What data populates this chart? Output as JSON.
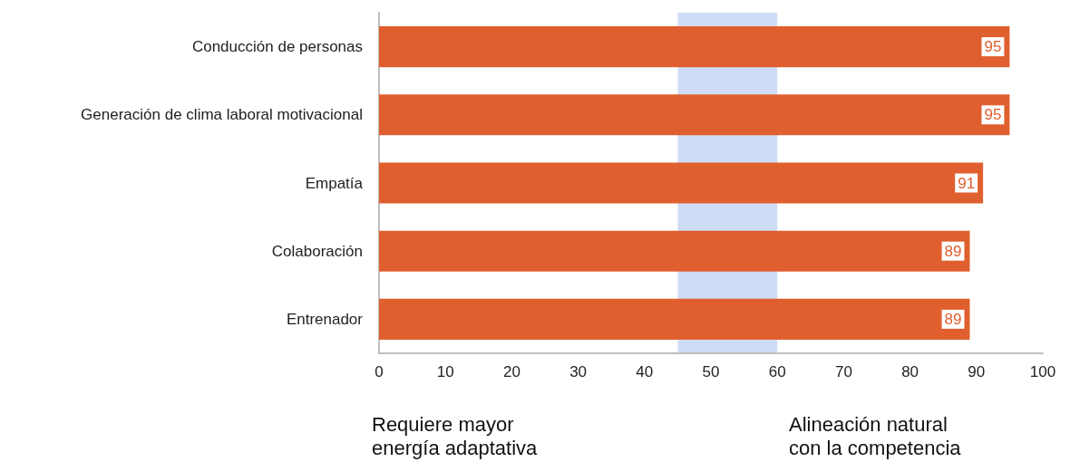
{
  "chart_data": {
    "type": "bar",
    "orientation": "horizontal",
    "categories": [
      "Conducción de personas",
      "Generación de clima laboral motivacional",
      "Empatía",
      "Colaboración",
      "Entrenador"
    ],
    "values": [
      95,
      95,
      91,
      89,
      89
    ],
    "color": "#e05f2f",
    "xlim": [
      0,
      100
    ],
    "xticks": [
      0,
      10,
      20,
      30,
      40,
      50,
      60,
      70,
      80,
      90,
      100
    ],
    "data_labels": true,
    "grid": false,
    "bands": [
      {
        "axis": "x",
        "from": 45,
        "to": 60,
        "color": "#cfdcf5"
      }
    ],
    "annotations": [
      "Requiere mayor\nenergía adaptativa",
      "Alineación natural\ncon la competencia"
    ]
  }
}
